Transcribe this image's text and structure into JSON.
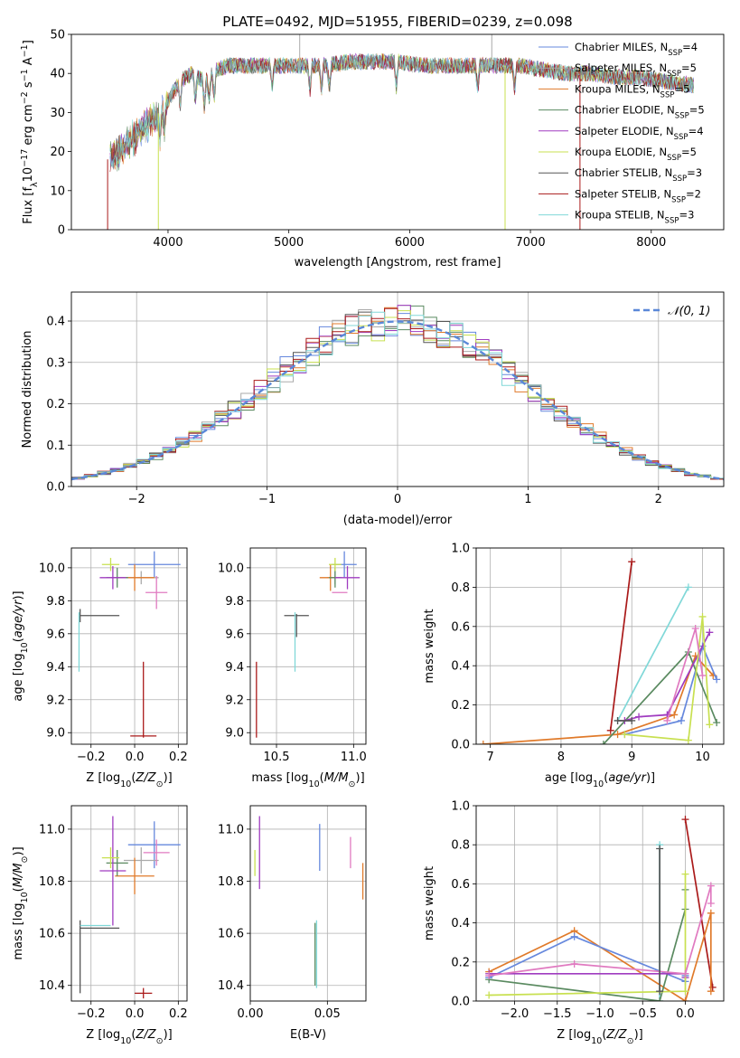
{
  "colors": {
    "c1": "#6688dd",
    "c2": "#aaaaaa",
    "c3": "#e07a2a",
    "c4": "#5a8a60",
    "c5": "#a03cc0",
    "c6": "#c8e050",
    "c7": "#555555",
    "c8": "#aa1a1a",
    "c9": "#80d8d8",
    "c10": "#e07ac0"
  },
  "chart_data": [
    {
      "id": "spectrum",
      "type": "line",
      "title": "PLATE=0492, MJD=51955, FIBERID=0239, z=0.098",
      "xlabel": "wavelength [Angstrom, rest frame]",
      "ylabel_parts": {
        "a": "Flux [f",
        "a_sub": "λ",
        "b": "10",
        "b_sup": "−17",
        "c": " erg cm",
        "c_sup": "−2",
        "d": " s",
        "d_sup": "−1",
        "e": " A",
        "e_sup": "−1",
        "f": "]"
      },
      "xlim": [
        3200,
        8600
      ],
      "ylim": [
        0,
        50
      ],
      "xticks": [
        4000,
        5000,
        6000,
        7000,
        8000
      ],
      "yticks": [
        0,
        10,
        20,
        30,
        40,
        50
      ],
      "grid": false,
      "legend_position": "top-right",
      "series": [
        {
          "label": "Chabrier MILES, N",
          "sub": "SSP",
          "eq": "=4"
        },
        {
          "label": "Salpeter MILES, N",
          "sub": "SSP",
          "eq": "=5"
        },
        {
          "label": "Kroupa MILES, N",
          "sub": "SSP",
          "eq": "=5"
        },
        {
          "label": "Chabrier ELODIE, N",
          "sub": "SSP",
          "eq": "=5"
        },
        {
          "label": "Salpeter ELODIE, N",
          "sub": "SSP",
          "eq": "=4"
        },
        {
          "label": "Kroupa ELODIE, N",
          "sub": "SSP",
          "eq": "=5"
        },
        {
          "label": "Chabrier STELIB, N",
          "sub": "SSP",
          "eq": "=3"
        },
        {
          "label": "Salpeter STELIB, N",
          "sub": "SSP",
          "eq": "=2"
        },
        {
          "label": "Kroupa STELIB, N",
          "sub": "SSP",
          "eq": "=3"
        }
      ],
      "continuum": {
        "wavelength": [
          3500,
          3600,
          3700,
          3800,
          3900,
          4000,
          4100,
          4200,
          4300,
          4400,
          4500,
          4700,
          4900,
          5100,
          5300,
          5500,
          5700,
          5900,
          6100,
          6300,
          6500,
          6700,
          6900,
          7100,
          7300,
          7500,
          7700,
          7900,
          8100,
          8350
        ],
        "flux": [
          18,
          20,
          23,
          26,
          29,
          33,
          38,
          40,
          38,
          41,
          42,
          42,
          42,
          42,
          42,
          43,
          43,
          43,
          42,
          42,
          42,
          42,
          42,
          41,
          40,
          40,
          39,
          39,
          38,
          37
        ]
      }
    },
    {
      "id": "residuals",
      "type": "histogram",
      "xlabel": "(data-model)/error",
      "ylabel": "Normed distribution",
      "xlim": [
        -2.5,
        2.5
      ],
      "ylim": [
        0,
        0.47
      ],
      "xticks": [
        -2,
        -1,
        0,
        1,
        2
      ],
      "yticks": [
        0.0,
        0.1,
        0.2,
        0.3,
        0.4
      ],
      "grid": true,
      "legend_position": "top-right",
      "reference_curve": {
        "label": "𝒩(0, 1)",
        "mean": 0,
        "sigma": 1
      },
      "bin_width": 0.1,
      "series_count": 9
    },
    {
      "id": "age-vs-Z",
      "type": "errorbar",
      "xlabel": "Z [log",
      "xlabel_sub": "10",
      "xlabel_rest": "(Z/Z",
      "xlabel_sun": "⊙",
      "xlabel_end": ")]",
      "ylabel": "age  [log",
      "ylabel_sub": "10",
      "ylabel_rest": "(age/yr)]",
      "xlim": [
        -0.29,
        0.24
      ],
      "ylim": [
        8.93,
        10.12
      ],
      "xticks": [
        -0.2,
        0.0,
        0.2
      ],
      "yticks": [
        9.0,
        9.2,
        9.4,
        9.6,
        9.8,
        10.0
      ],
      "grid": true,
      "points": [
        {
          "color": "c1",
          "x": 0.09,
          "xerr": 0.12,
          "y": 10.02,
          "yerr": 0.08
        },
        {
          "color": "c2",
          "x": 0.03,
          "xerr": 0.08,
          "y": 9.94,
          "yerr": 0.04
        },
        {
          "color": "c3",
          "x": 0.0,
          "xerr": 0.09,
          "y": 9.94,
          "yerr": 0.08
        },
        {
          "color": "c4",
          "x": -0.08,
          "xerr": 0.05,
          "y": 9.94,
          "yerr": 0.06
        },
        {
          "color": "c5",
          "x": -0.1,
          "xerr": 0.06,
          "y": 9.94,
          "yerr": 0.07
        },
        {
          "color": "c6",
          "x": -0.11,
          "xerr": 0.04,
          "y": 10.02,
          "yerr": 0.04
        },
        {
          "color": "c7",
          "x": -0.25,
          "xerr": 0.0,
          "y": 9.71,
          "yerr": 0.04
        },
        {
          "color": "c7",
          "x": -0.16,
          "xerr": 0.09,
          "y": 9.71,
          "yerr": 0.0
        },
        {
          "color": "c8",
          "x": 0.04,
          "xerr": 0.06,
          "y": 8.98,
          "yerr": 0.0
        },
        {
          "color": "c8",
          "x": 0.04,
          "xerr": 0.0,
          "y": 9.2,
          "yerr": 0.23
        },
        {
          "color": "c9",
          "x": -0.255,
          "xerr": 0.0,
          "y": 9.55,
          "yerr": 0.18
        },
        {
          "color": "c10",
          "x": 0.1,
          "xerr": 0.05,
          "y": 9.85,
          "yerr": 0.1
        }
      ]
    },
    {
      "id": "age-vs-mass",
      "type": "errorbar",
      "xlabel": "mass [log",
      "xlabel_sub": "10",
      "xlabel_rest": "(M/M",
      "xlabel_sun": "⊙",
      "xlabel_end": ")]",
      "xlim": [
        10.33,
        11.08
      ],
      "ylim": [
        8.93,
        10.12
      ],
      "xticks": [
        10.5,
        11.0
      ],
      "yticks": [
        9.0,
        9.2,
        9.4,
        9.6,
        9.8,
        10.0
      ],
      "grid": true,
      "points": [
        {
          "color": "c1",
          "x": 10.94,
          "xerr": 0.08,
          "y": 10.02,
          "yerr": 0.08
        },
        {
          "color": "c2",
          "x": 10.88,
          "xerr": 0.05,
          "y": 9.94,
          "yerr": 0.04
        },
        {
          "color": "c3",
          "x": 10.85,
          "xerr": 0.07,
          "y": 9.94,
          "yerr": 0.08
        },
        {
          "color": "c4",
          "x": 10.88,
          "xerr": 0.04,
          "y": 9.94,
          "yerr": 0.06
        },
        {
          "color": "c5",
          "x": 10.96,
          "xerr": 0.08,
          "y": 9.94,
          "yerr": 0.07
        },
        {
          "color": "c6",
          "x": 10.88,
          "xerr": 0.04,
          "y": 10.02,
          "yerr": 0.04
        },
        {
          "color": "c7",
          "x": 10.63,
          "xerr": 0.08,
          "y": 9.71,
          "yerr": 0.0
        },
        {
          "color": "c7",
          "x": 10.63,
          "xerr": 0.0,
          "y": 9.65,
          "yerr": 0.07
        },
        {
          "color": "c8",
          "x": 10.37,
          "xerr": 0.0,
          "y": 9.2,
          "yerr": 0.23
        },
        {
          "color": "c9",
          "x": 10.62,
          "xerr": 0.0,
          "y": 9.55,
          "yerr": 0.18
        },
        {
          "color": "c10",
          "x": 10.91,
          "xerr": 0.05,
          "y": 9.85,
          "yerr": 0.0
        }
      ]
    },
    {
      "id": "massweight-vs-age",
      "type": "line",
      "xlabel": "age  [log",
      "xlabel_sub": "10",
      "xlabel_rest": "(age/yr)]",
      "ylabel": "mass weight",
      "xlim": [
        6.8,
        10.3
      ],
      "ylim": [
        0,
        1.0
      ],
      "xticks": [
        7,
        8,
        9,
        10
      ],
      "yticks": [
        0.0,
        0.2,
        0.4,
        0.6,
        0.8,
        1.0
      ],
      "grid": true,
      "series": [
        {
          "color": "c8",
          "x": [
            8.7,
            9.0
          ],
          "y": [
            0.07,
            0.93
          ]
        },
        {
          "color": "c9",
          "x": [
            8.8,
            9.8
          ],
          "y": [
            0.12,
            0.8
          ]
        },
        {
          "color": "c3",
          "x": [
            6.9,
            8.8,
            9.6,
            9.9,
            10.15
          ],
          "y": [
            0.0,
            0.05,
            0.15,
            0.45,
            0.35
          ]
        },
        {
          "color": "c1",
          "x": [
            8.9,
            9.7,
            10.0,
            10.2
          ],
          "y": [
            0.05,
            0.12,
            0.5,
            0.33
          ]
        },
        {
          "color": "c4",
          "x": [
            8.6,
            9.8,
            10.2
          ],
          "y": [
            0.0,
            0.47,
            0.11
          ]
        },
        {
          "color": "c5",
          "x": [
            8.9,
            9.1,
            9.5,
            10.1
          ],
          "y": [
            0.12,
            0.14,
            0.15,
            0.57
          ]
        },
        {
          "color": "c6",
          "x": [
            8.9,
            9.8,
            10.0,
            10.1
          ],
          "y": [
            0.05,
            0.02,
            0.65,
            0.1
          ]
        },
        {
          "color": "c10",
          "x": [
            9.5,
            9.9,
            10.0
          ],
          "y": [
            0.12,
            0.59,
            0.35
          ]
        },
        {
          "color": "c7",
          "x": [
            8.8,
            9.0
          ],
          "y": [
            0.12,
            0.12
          ]
        }
      ]
    },
    {
      "id": "mass-vs-Z",
      "type": "errorbar",
      "xlabel": "Z [log",
      "xlabel_sub": "10",
      "xlabel_rest": "(Z/Z",
      "xlabel_sun": "⊙",
      "xlabel_end": ")]",
      "ylabel": "mass [log",
      "ylabel_sub": "10",
      "ylabel_rest": "(M/M",
      "ylabel_sun": "⊙",
      "ylabel_end": ")]",
      "xlim": [
        -0.29,
        0.24
      ],
      "ylim": [
        10.34,
        11.09
      ],
      "xticks": [
        -0.2,
        0.0,
        0.2
      ],
      "yticks": [
        10.4,
        10.6,
        10.8,
        11.0
      ],
      "grid": true,
      "points": [
        {
          "color": "c1",
          "x": 0.09,
          "xerr": 0.12,
          "y": 10.94,
          "yerr": 0.09
        },
        {
          "color": "c2",
          "x": 0.03,
          "xerr": 0.08,
          "y": 10.88,
          "yerr": 0.05
        },
        {
          "color": "c3",
          "x": 0.0,
          "xerr": 0.09,
          "y": 10.82,
          "yerr": 0.07
        },
        {
          "color": "c4",
          "x": -0.08,
          "xerr": 0.05,
          "y": 10.87,
          "yerr": 0.05
        },
        {
          "color": "c5",
          "x": -0.1,
          "xerr": 0.06,
          "y": 10.84,
          "yerr": 0.21
        },
        {
          "color": "c6",
          "x": -0.11,
          "xerr": 0.04,
          "y": 10.89,
          "yerr": 0.04
        },
        {
          "color": "c7",
          "x": -0.16,
          "xerr": 0.09,
          "y": 10.62,
          "yerr": 0.0
        },
        {
          "color": "c7",
          "x": -0.25,
          "xerr": 0.0,
          "y": 10.51,
          "yerr": 0.14
        },
        {
          "color": "c8",
          "x": 0.04,
          "xerr": 0.04,
          "y": 10.37,
          "yerr": 0.02
        },
        {
          "color": "c9",
          "x": -0.18,
          "xerr": 0.07,
          "y": 10.63,
          "yerr": 0.0
        },
        {
          "color": "c10",
          "x": 0.1,
          "xerr": 0.06,
          "y": 10.91,
          "yerr": 0.05
        }
      ]
    },
    {
      "id": "mass-vs-EBV",
      "type": "errorbar",
      "xlabel": "E(B-V)",
      "xlim": [
        0.0,
        0.075
      ],
      "ylim": [
        10.34,
        11.09
      ],
      "xticks": [
        0.0,
        0.05
      ],
      "yticks": [
        10.4,
        10.6,
        10.8,
        11.0
      ],
      "grid": true,
      "points": [
        {
          "color": "c6",
          "x": 0.003,
          "xerr": 0.0,
          "y": 10.87,
          "yerr": 0.05
        },
        {
          "color": "c5",
          "x": 0.006,
          "xerr": 0.0,
          "y": 10.91,
          "yerr": 0.14
        },
        {
          "color": "c1",
          "x": 0.045,
          "xerr": 0.0,
          "y": 10.93,
          "yerr": 0.09
        },
        {
          "color": "c4",
          "x": 0.042,
          "xerr": 0.0,
          "y": 10.52,
          "yerr": 0.12
        },
        {
          "color": "c9",
          "x": 0.043,
          "xerr": 0.0,
          "y": 10.52,
          "yerr": 0.13
        },
        {
          "color": "c10",
          "x": 0.065,
          "xerr": 0.0,
          "y": 10.91,
          "yerr": 0.06
        },
        {
          "color": "c3",
          "x": 0.073,
          "xerr": 0.0,
          "y": 10.8,
          "yerr": 0.07
        }
      ]
    },
    {
      "id": "massweight-vs-Z",
      "type": "line",
      "xlabel": "Z [log",
      "xlabel_sub": "10",
      "xlabel_rest": "(Z/Z",
      "xlabel_sun": "⊙",
      "xlabel_end": ")]",
      "ylabel": "mass weight",
      "xlim": [
        -2.45,
        0.45
      ],
      "ylim": [
        0,
        1.0
      ],
      "xticks": [
        -2.0,
        -1.5,
        -1.0,
        -0.5,
        0.0
      ],
      "yticks": [
        0.0,
        0.2,
        0.4,
        0.6,
        0.8,
        1.0
      ],
      "grid": true,
      "series": [
        {
          "color": "c8",
          "x": [
            0.0,
            0.32
          ],
          "y": [
            0.93,
            0.07
          ]
        },
        {
          "color": "c9",
          "x": [
            -0.3,
            -0.3
          ],
          "y": [
            0.0,
            0.8
          ]
        },
        {
          "color": "c3",
          "x": [
            -2.3,
            -1.3,
            0.0,
            0.3,
            0.3
          ],
          "y": [
            0.15,
            0.36,
            0.0,
            0.45,
            0.05
          ]
        },
        {
          "color": "c1",
          "x": [
            -2.3,
            -1.3,
            0.0,
            0.0
          ],
          "y": [
            0.12,
            0.33,
            0.1,
            0.13
          ]
        },
        {
          "color": "c4",
          "x": [
            -2.3,
            -0.3,
            0.0,
            0.0
          ],
          "y": [
            0.11,
            0.0,
            0.47,
            0.57
          ]
        },
        {
          "color": "c5",
          "x": [
            -2.3,
            0.0,
            0.0
          ],
          "y": [
            0.14,
            0.14,
            0.12
          ]
        },
        {
          "color": "c6",
          "x": [
            -2.3,
            0.0,
            0.0
          ],
          "y": [
            0.03,
            0.05,
            0.65
          ]
        },
        {
          "color": "c10",
          "x": [
            -2.3,
            -1.3,
            0.0,
            0.3,
            0.3
          ],
          "y": [
            0.13,
            0.19,
            0.14,
            0.59,
            0.5
          ]
        },
        {
          "color": "c7",
          "x": [
            -0.3,
            -0.3
          ],
          "y": [
            0.05,
            0.78
          ]
        }
      ]
    }
  ]
}
